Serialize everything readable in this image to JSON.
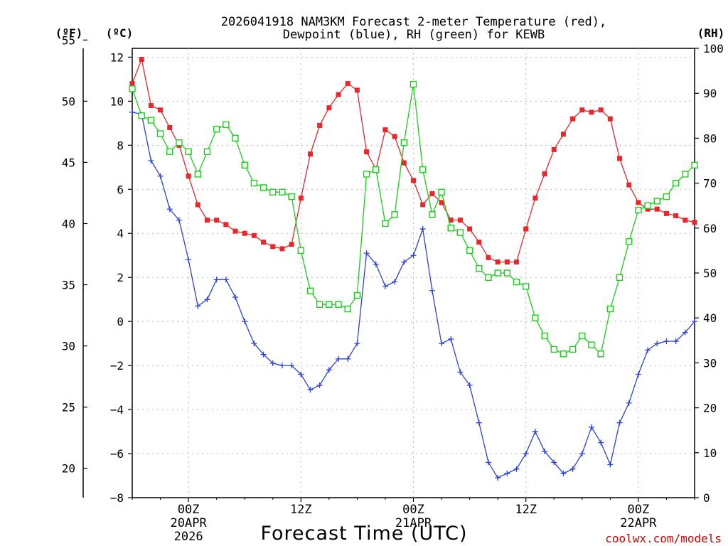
{
  "chart_data": {
    "type": "line",
    "title_line1": "2026041918 NAM3KM Forecast 2-meter Temperature (red),",
    "title_line2": "Dewpoint (blue), RH (green) for KEWB",
    "xlabel": "Forecast Time (UTC)",
    "credit": "coolwx.com/models",
    "units": {
      "fahrenheit": "(ºF)",
      "celsius": "(ºC)",
      "rh": "(RH)"
    },
    "x_hours_from_start": [
      0,
      1,
      2,
      3,
      4,
      5,
      6,
      7,
      8,
      9,
      10,
      11,
      12,
      13,
      14,
      15,
      16,
      17,
      18,
      19,
      20,
      21,
      22,
      23,
      24,
      25,
      26,
      27,
      28,
      29,
      30,
      31,
      32,
      33,
      34,
      35,
      36,
      37,
      38,
      39,
      40,
      41,
      42,
      43,
      44,
      45,
      46,
      47,
      48,
      49,
      50,
      51,
      52,
      53,
      54,
      55,
      56,
      57,
      58,
      59,
      60
    ],
    "x_start_utc": "2026-04-19T18Z",
    "x_ticks": [
      {
        "hour": 6,
        "label": "00Z",
        "date": "20APR",
        "year": "2026"
      },
      {
        "hour": 18,
        "label": "12Z",
        "date": "",
        "year": ""
      },
      {
        "hour": 30,
        "label": "00Z",
        "date": "21APR",
        "year": ""
      },
      {
        "hour": 42,
        "label": "12Z",
        "date": "",
        "year": ""
      },
      {
        "hour": 54,
        "label": "00Z",
        "date": "22APR",
        "year": ""
      }
    ],
    "y_celsius": {
      "min": -8,
      "max": 12.4,
      "ticks": [
        "12",
        "10",
        "8",
        "6",
        "4",
        "2",
        "0",
        "−2",
        "−4",
        "−6",
        "−8"
      ],
      "tick_values": [
        12,
        10,
        8,
        6,
        4,
        2,
        0,
        -2,
        -4,
        -6,
        -8
      ]
    },
    "y_fahrenheit": {
      "ticks": [
        "55",
        "50",
        "45",
        "40",
        "35",
        "30",
        "25",
        "20"
      ],
      "tick_values": [
        55,
        50,
        45,
        40,
        35,
        30,
        25,
        20
      ]
    },
    "y_rh": {
      "min": 0,
      "max": 100,
      "ticks": [
        "100",
        "90",
        "80",
        "70",
        "60",
        "50",
        "40",
        "30",
        "20",
        "10",
        "0"
      ],
      "tick_values": [
        100,
        90,
        80,
        70,
        60,
        50,
        40,
        30,
        20,
        10,
        0
      ]
    },
    "series": [
      {
        "name": "Temperature",
        "unit": "C",
        "color": "#e8262b",
        "marker": "filled-square",
        "values": [
          10.8,
          11.9,
          9.8,
          9.6,
          8.8,
          8.0,
          6.6,
          5.3,
          4.6,
          4.6,
          4.4,
          4.1,
          4.0,
          3.9,
          3.6,
          3.4,
          3.3,
          3.5,
          5.6,
          7.6,
          8.9,
          9.7,
          10.3,
          10.8,
          10.5,
          7.7,
          6.9,
          8.7,
          8.4,
          7.2,
          6.4,
          5.3,
          5.8,
          5.4,
          4.6,
          4.6,
          4.2,
          3.6,
          2.9,
          2.7,
          2.7,
          2.7,
          4.2,
          5.6,
          6.7,
          7.8,
          8.5,
          9.2,
          9.6,
          9.5,
          9.6,
          9.2,
          7.4,
          6.2,
          5.4,
          5.1,
          5.1,
          4.9,
          4.8,
          4.6,
          4.5
        ]
      },
      {
        "name": "Dewpoint",
        "unit": "C",
        "color": "#2b41e0",
        "marker": "plus",
        "values": [
          9.5,
          9.4,
          7.3,
          6.6,
          5.1,
          4.6,
          2.8,
          0.7,
          1.0,
          1.9,
          1.9,
          1.1,
          0.0,
          -1.0,
          -1.5,
          -1.9,
          -2.0,
          -2.0,
          -2.4,
          -3.1,
          -2.9,
          -2.2,
          -1.7,
          -1.7,
          -1.0,
          3.1,
          2.6,
          1.6,
          1.8,
          2.7,
          3.0,
          4.2,
          1.4,
          -1.0,
          -0.8,
          -2.3,
          -2.9,
          -4.6,
          -6.4,
          -7.1,
          -6.9,
          -6.7,
          -6.0,
          -5.0,
          -5.9,
          -6.4,
          -6.9,
          -6.7,
          -6.0,
          -4.8,
          -5.5,
          -6.5,
          -4.6,
          -3.7,
          -2.4,
          -1.3,
          -1.0,
          -0.9,
          -0.9,
          -0.5,
          0.0
        ]
      },
      {
        "name": "RH",
        "unit": "%",
        "color": "#19d019",
        "marker": "open-square",
        "values": [
          91,
          85,
          84,
          81,
          77,
          79,
          77,
          72,
          77,
          82,
          83,
          80,
          74,
          70,
          69,
          68,
          68,
          67,
          55,
          46,
          43,
          43,
          43,
          42,
          45,
          72,
          73,
          61,
          63,
          79,
          92,
          73,
          63,
          68,
          60,
          59,
          55,
          51,
          49,
          50,
          50,
          48,
          47,
          40,
          36,
          33,
          32,
          33,
          36,
          34,
          32,
          42,
          49,
          57,
          64,
          65,
          66,
          67,
          70,
          72,
          74
        ]
      }
    ]
  }
}
